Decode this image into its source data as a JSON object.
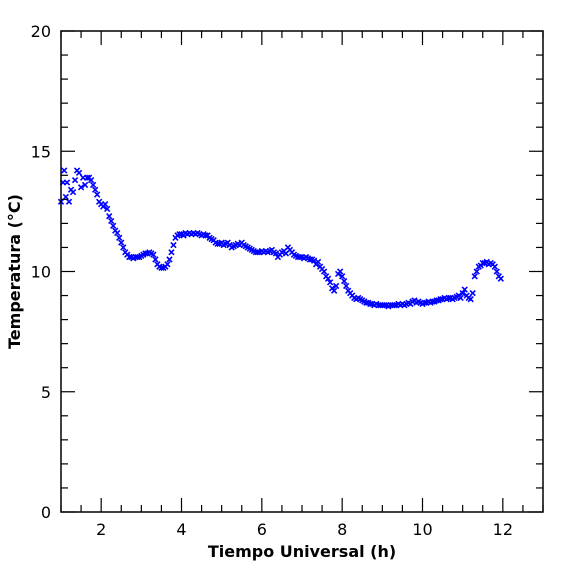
{
  "chart_data": {
    "type": "scatter",
    "title": "",
    "xlabel": "Tiempo Universal (h)",
    "ylabel": "Temperatura (°C)",
    "xlim": [
      1,
      13
    ],
    "ylim": [
      0,
      20
    ],
    "xticks": [
      2,
      4,
      6,
      8,
      10,
      12
    ],
    "yticks": [
      0,
      5,
      10,
      15,
      20
    ],
    "marker": "x",
    "color": "#0000ff",
    "grid": false,
    "legend": "none",
    "series": [
      {
        "points": [
          [
            1.0,
            12.9
          ],
          [
            1.05,
            13.7
          ],
          [
            1.08,
            14.2
          ],
          [
            1.12,
            13.1
          ],
          [
            1.15,
            13.7
          ],
          [
            1.2,
            12.9
          ],
          [
            1.25,
            13.4
          ],
          [
            1.3,
            13.3
          ],
          [
            1.35,
            13.8
          ],
          [
            1.4,
            14.2
          ],
          [
            1.45,
            14.1
          ],
          [
            1.5,
            13.5
          ],
          [
            1.55,
            13.9
          ],
          [
            1.6,
            13.6
          ],
          [
            1.65,
            13.9
          ],
          [
            1.7,
            13.9
          ],
          [
            1.75,
            13.8
          ],
          [
            1.8,
            13.6
          ],
          [
            1.85,
            13.4
          ],
          [
            1.9,
            13.2
          ],
          [
            1.95,
            12.9
          ],
          [
            2.0,
            12.8
          ],
          [
            2.05,
            12.7
          ],
          [
            2.1,
            12.8
          ],
          [
            2.15,
            12.6
          ],
          [
            2.2,
            12.3
          ],
          [
            2.25,
            12.1
          ],
          [
            2.3,
            11.9
          ],
          [
            2.35,
            11.7
          ],
          [
            2.4,
            11.6
          ],
          [
            2.45,
            11.4
          ],
          [
            2.5,
            11.2
          ],
          [
            2.55,
            11.0
          ],
          [
            2.6,
            10.8
          ],
          [
            2.65,
            10.7
          ],
          [
            2.7,
            10.6
          ],
          [
            2.75,
            10.6
          ],
          [
            2.8,
            10.55
          ],
          [
            2.85,
            10.6
          ],
          [
            2.9,
            10.6
          ],
          [
            2.95,
            10.6
          ],
          [
            3.0,
            10.65
          ],
          [
            3.05,
            10.7
          ],
          [
            3.1,
            10.75
          ],
          [
            3.15,
            10.75
          ],
          [
            3.2,
            10.8
          ],
          [
            3.25,
            10.75
          ],
          [
            3.3,
            10.7
          ],
          [
            3.35,
            10.5
          ],
          [
            3.4,
            10.3
          ],
          [
            3.45,
            10.2
          ],
          [
            3.5,
            10.15
          ],
          [
            3.55,
            10.15
          ],
          [
            3.6,
            10.2
          ],
          [
            3.65,
            10.3
          ],
          [
            3.7,
            10.5
          ],
          [
            3.75,
            10.8
          ],
          [
            3.8,
            11.1
          ],
          [
            3.85,
            11.4
          ],
          [
            3.9,
            11.5
          ],
          [
            3.95,
            11.55
          ],
          [
            4.0,
            11.55
          ],
          [
            4.05,
            11.5
          ],
          [
            4.1,
            11.6
          ],
          [
            4.15,
            11.55
          ],
          [
            4.2,
            11.6
          ],
          [
            4.25,
            11.55
          ],
          [
            4.3,
            11.6
          ],
          [
            4.35,
            11.55
          ],
          [
            4.4,
            11.6
          ],
          [
            4.45,
            11.55
          ],
          [
            4.5,
            11.5
          ],
          [
            4.55,
            11.55
          ],
          [
            4.6,
            11.5
          ],
          [
            4.65,
            11.5
          ],
          [
            4.7,
            11.4
          ],
          [
            4.75,
            11.35
          ],
          [
            4.8,
            11.3
          ],
          [
            4.85,
            11.2
          ],
          [
            4.9,
            11.15
          ],
          [
            4.95,
            11.15
          ],
          [
            5.0,
            11.2
          ],
          [
            5.05,
            11.1
          ],
          [
            5.1,
            11.15
          ],
          [
            5.15,
            11.2
          ],
          [
            5.2,
            11.1
          ],
          [
            5.25,
            11.0
          ],
          [
            5.3,
            11.05
          ],
          [
            5.35,
            11.1
          ],
          [
            5.4,
            11.15
          ],
          [
            5.45,
            11.1
          ],
          [
            5.5,
            11.2
          ],
          [
            5.55,
            11.1
          ],
          [
            5.6,
            11.05
          ],
          [
            5.65,
            11.0
          ],
          [
            5.7,
            10.95
          ],
          [
            5.75,
            10.9
          ],
          [
            5.8,
            10.85
          ],
          [
            5.85,
            10.8
          ],
          [
            5.9,
            10.8
          ],
          [
            5.95,
            10.8
          ],
          [
            6.0,
            10.85
          ],
          [
            6.05,
            10.8
          ],
          [
            6.1,
            10.85
          ],
          [
            6.15,
            10.8
          ],
          [
            6.2,
            10.85
          ],
          [
            6.25,
            10.9
          ],
          [
            6.3,
            10.8
          ],
          [
            6.35,
            10.75
          ],
          [
            6.4,
            10.6
          ],
          [
            6.45,
            10.7
          ],
          [
            6.5,
            10.8
          ],
          [
            6.55,
            10.85
          ],
          [
            6.6,
            10.75
          ],
          [
            6.65,
            11.0
          ],
          [
            6.7,
            10.9
          ],
          [
            6.75,
            10.8
          ],
          [
            6.8,
            10.7
          ],
          [
            6.85,
            10.65
          ],
          [
            6.9,
            10.6
          ],
          [
            6.95,
            10.6
          ],
          [
            7.0,
            10.6
          ],
          [
            7.05,
            10.55
          ],
          [
            7.1,
            10.6
          ],
          [
            7.15,
            10.55
          ],
          [
            7.2,
            10.5
          ],
          [
            7.25,
            10.5
          ],
          [
            7.3,
            10.45
          ],
          [
            7.35,
            10.3
          ],
          [
            7.4,
            10.4
          ],
          [
            7.45,
            10.2
          ],
          [
            7.5,
            10.1
          ],
          [
            7.55,
            10.0
          ],
          [
            7.6,
            9.8
          ],
          [
            7.65,
            9.7
          ],
          [
            7.7,
            9.55
          ],
          [
            7.75,
            9.3
          ],
          [
            7.8,
            9.2
          ],
          [
            7.85,
            9.4
          ],
          [
            7.9,
            9.9
          ],
          [
            7.95,
            10.0
          ],
          [
            8.0,
            9.8
          ],
          [
            8.05,
            9.6
          ],
          [
            8.1,
            9.4
          ],
          [
            8.15,
            9.2
          ],
          [
            8.2,
            9.1
          ],
          [
            8.25,
            9.0
          ],
          [
            8.3,
            8.9
          ],
          [
            8.35,
            8.85
          ],
          [
            8.4,
            8.9
          ],
          [
            8.45,
            8.85
          ],
          [
            8.5,
            8.8
          ],
          [
            8.55,
            8.75
          ],
          [
            8.6,
            8.7
          ],
          [
            8.65,
            8.7
          ],
          [
            8.7,
            8.65
          ],
          [
            8.75,
            8.65
          ],
          [
            8.8,
            8.6
          ],
          [
            8.85,
            8.65
          ],
          [
            8.9,
            8.6
          ],
          [
            8.95,
            8.6
          ],
          [
            9.0,
            8.6
          ],
          [
            9.05,
            8.6
          ],
          [
            9.1,
            8.6
          ],
          [
            9.15,
            8.55
          ],
          [
            9.2,
            8.6
          ],
          [
            9.25,
            8.6
          ],
          [
            9.3,
            8.6
          ],
          [
            9.35,
            8.6
          ],
          [
            9.4,
            8.65
          ],
          [
            9.45,
            8.6
          ],
          [
            9.5,
            8.65
          ],
          [
            9.55,
            8.6
          ],
          [
            9.6,
            8.65
          ],
          [
            9.65,
            8.7
          ],
          [
            9.7,
            8.65
          ],
          [
            9.75,
            8.75
          ],
          [
            9.8,
            8.8
          ],
          [
            9.85,
            8.7
          ],
          [
            9.9,
            8.75
          ],
          [
            9.95,
            8.7
          ],
          [
            10.0,
            8.65
          ],
          [
            10.05,
            8.7
          ],
          [
            10.1,
            8.7
          ],
          [
            10.15,
            8.75
          ],
          [
            10.2,
            8.7
          ],
          [
            10.25,
            8.75
          ],
          [
            10.3,
            8.75
          ],
          [
            10.35,
            8.8
          ],
          [
            10.4,
            8.8
          ],
          [
            10.45,
            8.85
          ],
          [
            10.5,
            8.85
          ],
          [
            10.55,
            8.9
          ],
          [
            10.6,
            8.85
          ],
          [
            10.65,
            8.9
          ],
          [
            10.7,
            8.9
          ],
          [
            10.75,
            8.85
          ],
          [
            10.8,
            8.9
          ],
          [
            10.85,
            8.95
          ],
          [
            10.9,
            9.0
          ],
          [
            10.95,
            8.9
          ],
          [
            11.0,
            9.1
          ],
          [
            11.05,
            9.25
          ],
          [
            11.1,
            9.0
          ],
          [
            11.15,
            8.9
          ],
          [
            11.2,
            8.85
          ],
          [
            11.25,
            9.1
          ],
          [
            11.3,
            9.8
          ],
          [
            11.35,
            10.0
          ],
          [
            11.4,
            10.2
          ],
          [
            11.45,
            10.25
          ],
          [
            11.5,
            10.35
          ],
          [
            11.55,
            10.35
          ],
          [
            11.6,
            10.4
          ],
          [
            11.65,
            10.3
          ],
          [
            11.7,
            10.35
          ],
          [
            11.75,
            10.3
          ],
          [
            11.8,
            10.2
          ],
          [
            11.85,
            10.0
          ],
          [
            11.9,
            9.8
          ],
          [
            11.95,
            9.7
          ]
        ]
      }
    ]
  }
}
